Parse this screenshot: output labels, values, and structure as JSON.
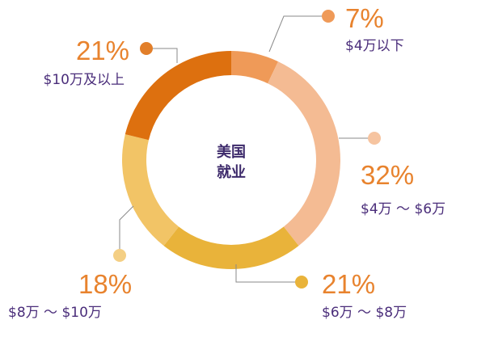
{
  "chart_data": {
    "type": "pie",
    "style": "donut",
    "center_label": [
      "美国",
      "就业"
    ],
    "slices": [
      {
        "pct_label": "7%",
        "range_label": "$4万以下",
        "value": 7,
        "color": "#ef9a58",
        "label_color": "#e8832e",
        "dot_color": "#ef9a58"
      },
      {
        "pct_label": "32%",
        "range_label": "$4万 ～ $6万",
        "value": 32,
        "color": "#f4bb93",
        "label_color": "#e8832e",
        "dot_color": "#f6c4a0"
      },
      {
        "pct_label": "21%",
        "range_label": "$6万 ～ $8万",
        "value": 21,
        "color": "#e9b33a",
        "label_color": "#e8832e",
        "dot_color": "#e9b33a"
      },
      {
        "pct_label": "18%",
        "range_label": "$8万 ～ $10万",
        "value": 18,
        "color": "#f2c466",
        "label_color": "#e8832e",
        "dot_color": "#f4cf84"
      },
      {
        "pct_label": "21%",
        "range_label": "$10万及以上",
        "value": 21,
        "color": "#dd700f",
        "label_color": "#e8832e",
        "dot_color": "#e27f2a"
      }
    ]
  }
}
